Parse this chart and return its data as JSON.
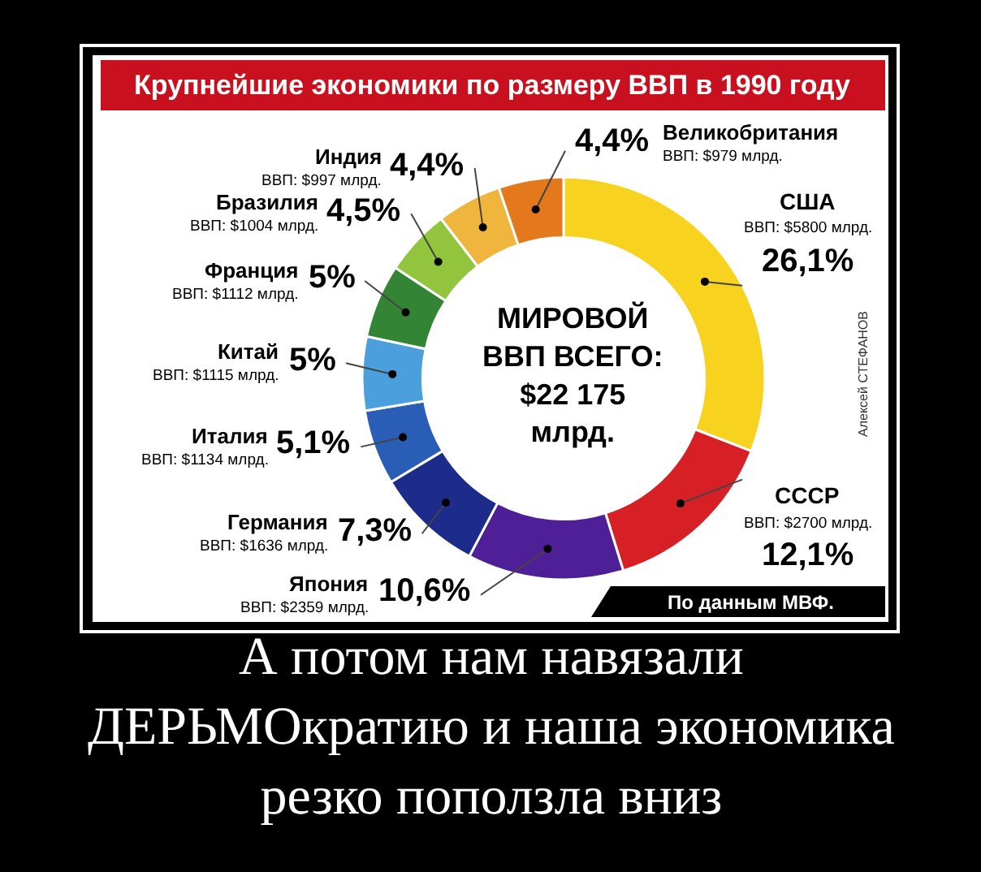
{
  "chart_data": {
    "type": "donut",
    "title": "Крупнейшие экономики по размеру ВВП в 1990 году",
    "categories": [
      "США",
      "СССР",
      "Япония",
      "Германия",
      "Италия",
      "Китай",
      "Франция",
      "Бразилия",
      "Индия",
      "Великобритания"
    ],
    "values": [
      26.1,
      12.1,
      10.6,
      7.3,
      5.1,
      5,
      5,
      4.5,
      4.4,
      4.4
    ],
    "value_labels": [
      "26,1%",
      "12,1%",
      "10,6%",
      "7,3%",
      "5,1%",
      "5%",
      "5%",
      "4,5%",
      "4,4%",
      "4,4%"
    ],
    "colors": [
      "#f7d21e",
      "#d71f26",
      "#4e1f96",
      "#1d2b8a",
      "#2a5db5",
      "#4b9fdd",
      "#338535",
      "#93c43e",
      "#efb53c",
      "#e3781d"
    ],
    "annotations": [
      {
        "text": "ВВП: $5800 млрд.",
        "x": "США"
      },
      {
        "text": "ВВП: $2700 млрд.",
        "x": "СССР"
      },
      {
        "text": "ВВП: $2359 млрд.",
        "x": "Япония"
      },
      {
        "text": "ВВП: $1636 млрд.",
        "x": "Германия"
      },
      {
        "text": "ВВП: $1134 млрд.",
        "x": "Италия"
      },
      {
        "text": "ВВП: $1115 млрд.",
        "x": "Китай"
      },
      {
        "text": "ВВП: $1112 млрд.",
        "x": "Франция"
      },
      {
        "text": "ВВП: $1004 млрд.",
        "x": "Бразилия"
      },
      {
        "text": "ВВП: $997 млрд.",
        "x": "Индия"
      },
      {
        "text": "ВВП: $979 млрд.",
        "x": "Великобритания"
      },
      "МИРОВОЙ\nВВП ВСЕГО:\n$22 175\nмлрд.",
      "По данным МВФ.",
      "Алексей СТЕФАНОВ",
      "А потом нам навязали\nДЕРЬМОкратию и наша экономика\nрезко поползла вниз"
    ]
  }
}
